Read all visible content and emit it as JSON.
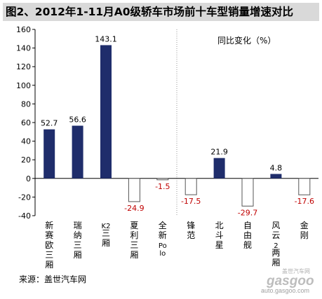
{
  "title": "图2、2012年1-11月A0级轿车市场前十车型销量增速对比",
  "source": "来源：盖世汽车网",
  "watermark": {
    "brand": "gasgoo",
    "url": "auto.gasgoo.com",
    "cn": "盖世汽车网"
  },
  "chart_data": {
    "type": "bar",
    "categories": [
      "新赛欧三厢",
      "瑞纳三厢",
      "K2三厢",
      "夏利三厢",
      "全新Polo",
      "锋范",
      "北斗星",
      "自由舰",
      "风云2两厢",
      "金刚"
    ],
    "values": [
      52.7,
      56.6,
      143.1,
      -24.9,
      -1.5,
      -17.5,
      21.9,
      -29.7,
      4.8,
      -17.6
    ],
    "value_labels": [
      "52.7",
      "56.6",
      "143.1",
      "-24.9",
      "-1.5",
      "-17.5",
      "21.9",
      "-29.7",
      "4.8",
      "-17.6"
    ],
    "legend": "同比变化（%）",
    "ylim": [
      -40,
      160
    ],
    "yticks": [
      -40,
      -20,
      0,
      20,
      40,
      60,
      80,
      100,
      120,
      140,
      160
    ],
    "ytick_labels": [
      "-40",
      "-20",
      "0",
      "20",
      "40",
      "60",
      "80",
      "100",
      "120",
      "140",
      "160"
    ],
    "divider_after_category": 5,
    "colors": {
      "positive": "#1f2d6b",
      "negative": "#ffffff",
      "negative_stroke": "#555555",
      "axis": "#000000",
      "divider": "#999999"
    }
  }
}
